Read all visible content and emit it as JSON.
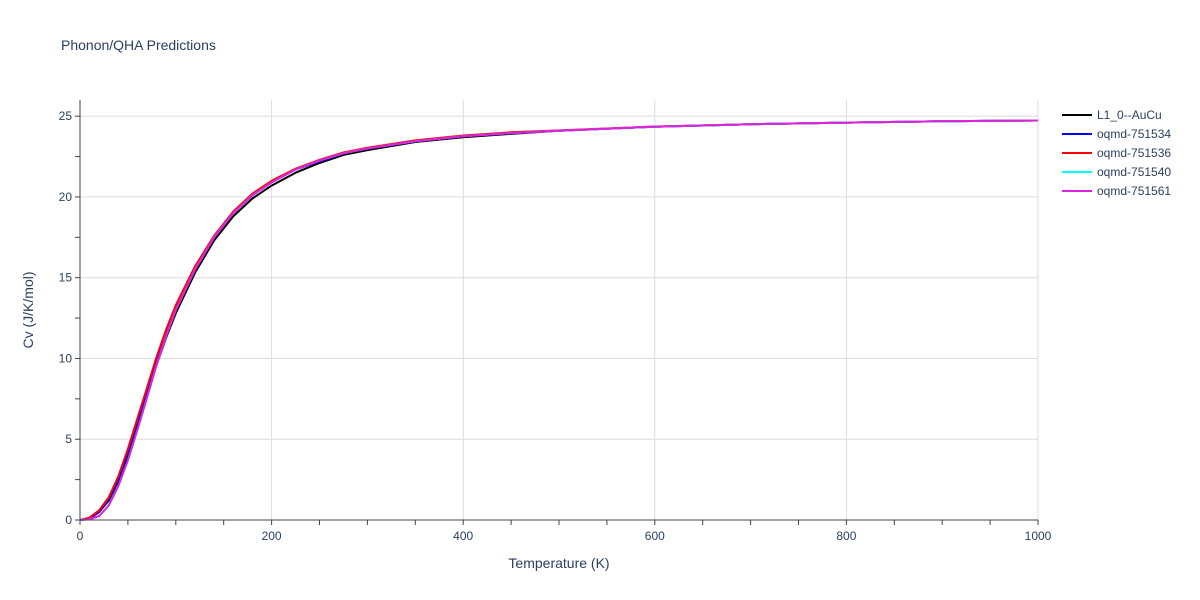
{
  "chart_data": {
    "type": "line",
    "title": "Phonon/QHA Predictions",
    "xlabel": "Temperature (K)",
    "ylabel": "Cv (J/K/mol)",
    "xlim": [
      0,
      1000
    ],
    "ylim": [
      0,
      26
    ],
    "x_ticks": [
      0,
      200,
      400,
      600,
      800,
      1000
    ],
    "y_ticks": [
      0,
      5,
      10,
      15,
      20,
      25
    ],
    "grid": true,
    "legend_position": "top-right outside",
    "x": [
      0,
      10,
      20,
      30,
      40,
      50,
      60,
      70,
      80,
      90,
      100,
      120,
      140,
      160,
      180,
      200,
      225,
      250,
      275,
      300,
      350,
      400,
      450,
      500,
      600,
      700,
      800,
      900,
      1000
    ],
    "series": [
      {
        "name": "L1_0--AuCu",
        "color": "#000000",
        "values": [
          0,
          0.1,
          0.5,
          1.2,
          2.4,
          4.0,
          5.9,
          7.8,
          9.6,
          11.3,
          12.8,
          15.3,
          17.3,
          18.8,
          19.9,
          20.7,
          21.5,
          22.1,
          22.6,
          22.9,
          23.4,
          23.7,
          23.9,
          24.1,
          24.35,
          24.5,
          24.6,
          24.68,
          24.73
        ]
      },
      {
        "name": "oqmd-751534",
        "color": "#0000ff",
        "values": [
          0,
          0.1,
          0.5,
          1.3,
          2.5,
          4.2,
          6.1,
          8.0,
          9.9,
          11.6,
          13.1,
          15.6,
          17.5,
          19.0,
          20.1,
          20.9,
          21.7,
          22.2,
          22.7,
          23.0,
          23.45,
          23.75,
          23.95,
          24.1,
          24.35,
          24.5,
          24.6,
          24.68,
          24.73
        ]
      },
      {
        "name": "oqmd-751536",
        "color": "#ff0000",
        "values": [
          0,
          0.15,
          0.6,
          1.4,
          2.7,
          4.4,
          6.3,
          8.2,
          10.1,
          11.8,
          13.3,
          15.7,
          17.6,
          19.1,
          20.2,
          21.0,
          21.75,
          22.3,
          22.75,
          23.05,
          23.5,
          23.8,
          24.0,
          24.12,
          24.36,
          24.5,
          24.6,
          24.68,
          24.73
        ]
      },
      {
        "name": "oqmd-751540",
        "color": "#00ffff",
        "values": [
          0,
          0.05,
          0.25,
          0.9,
          2.1,
          3.7,
          5.6,
          7.6,
          9.6,
          11.4,
          13.0,
          15.5,
          17.5,
          19.0,
          20.1,
          20.9,
          21.7,
          22.25,
          22.7,
          23.0,
          23.45,
          23.75,
          23.95,
          24.1,
          24.35,
          24.5,
          24.6,
          24.68,
          24.73
        ]
      },
      {
        "name": "oqmd-751561",
        "color": "#e020e0",
        "values": [
          0,
          0.05,
          0.25,
          0.9,
          2.1,
          3.7,
          5.6,
          7.6,
          9.6,
          11.4,
          13.0,
          15.5,
          17.5,
          19.0,
          20.1,
          20.9,
          21.7,
          22.25,
          22.7,
          23.0,
          23.45,
          23.75,
          23.95,
          24.1,
          24.35,
          24.5,
          24.6,
          24.68,
          24.73
        ]
      }
    ]
  }
}
